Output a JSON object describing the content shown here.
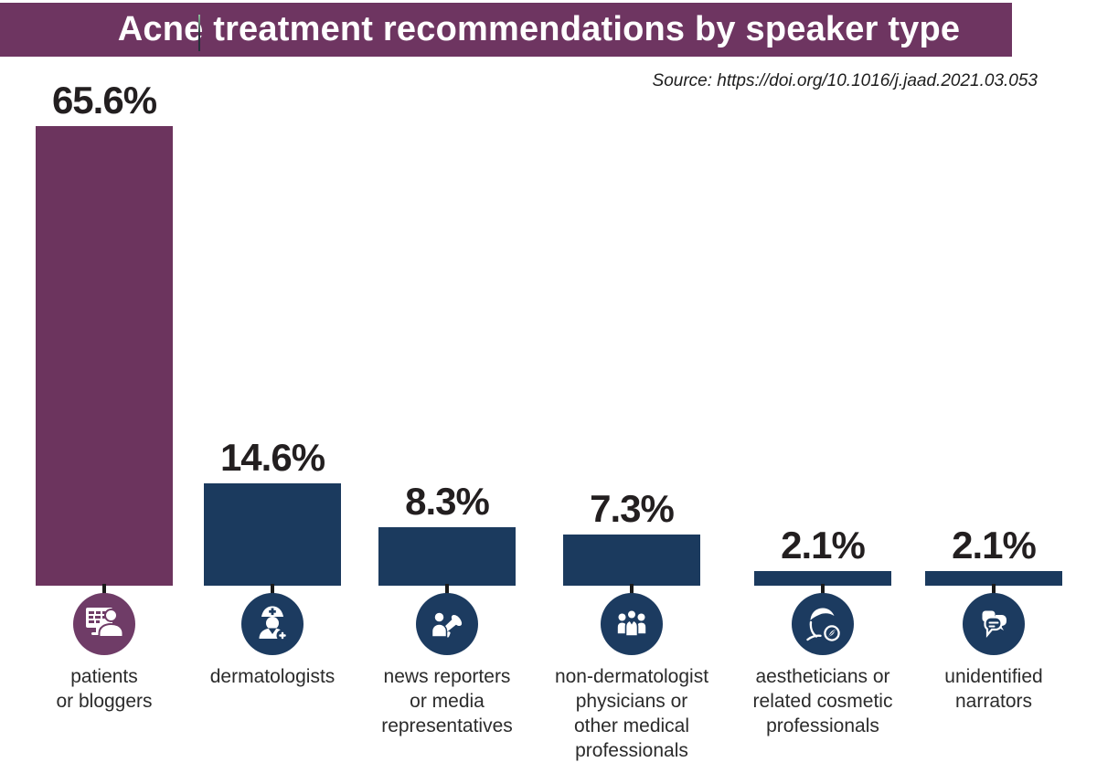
{
  "header": {
    "title": "Acne treatment recommendations by speaker type",
    "source": "Source: https://doi.org/10.1016/j.jaad.2021.03.053"
  },
  "colors": {
    "banner_bg": "#6E3561",
    "title_text": "#FFFFFF",
    "purple_bar": "#6C345E",
    "purple_icon_bg": "#6F3C67",
    "navy_bar": "#1B3A5E",
    "navy_icon_bg": "#1C3B60",
    "value_text": "#231F20",
    "category_text": "#2B2B2B",
    "connector_line": "#1A1A1A",
    "background": "#FFFFFF"
  },
  "chart_data": {
    "type": "bar",
    "title": "Acne treatment recommendations by speaker type",
    "xlabel": "",
    "ylabel": "",
    "unit": "%",
    "ylim": [
      0,
      70
    ],
    "grid": false,
    "legend": "none",
    "categories": [
      "patients or bloggers",
      "dermatologists",
      "news reporters or media representatives",
      "non-dermatologist physicians or other medical professionals",
      "aestheticians or related cosmetic professionals",
      "unidentified narrators"
    ],
    "values": [
      65.6,
      14.6,
      8.3,
      7.3,
      2.1,
      2.1
    ],
    "bars": [
      {
        "label": "65.6%",
        "value": 65.6,
        "category": "patients or bloggers",
        "category_lines": [
          "patients",
          "or bloggers"
        ],
        "color": "#6C345E",
        "icon_bg": "#6F3C67",
        "icon": "patient-blogger-computer-icon"
      },
      {
        "label": "14.6%",
        "value": 14.6,
        "category": "dermatologists",
        "category_lines": [
          "dermatologists"
        ],
        "color": "#1B3A5E",
        "icon_bg": "#1C3B60",
        "icon": "dermatologist-nurse-icon"
      },
      {
        "label": "8.3%",
        "value": 8.3,
        "category": "news reporters or media representatives",
        "category_lines": [
          "news reporters",
          "or media",
          "representatives"
        ],
        "color": "#1B3A5E",
        "icon_bg": "#1C3B60",
        "icon": "reporter-megaphone-icon"
      },
      {
        "label": "7.3%",
        "value": 7.3,
        "category": "non-dermatologist physicians or other medical professionals",
        "category_lines": [
          "non-dermatologist",
          "physicians or",
          "other medical",
          "professionals"
        ],
        "color": "#1B3A5E",
        "icon_bg": "#1C3B60",
        "icon": "medical-professionals-group-icon"
      },
      {
        "label": "2.1%",
        "value": 2.1,
        "category": "aestheticians or related cosmetic professionals",
        "category_lines": [
          "aestheticians or",
          "related cosmetic",
          "professionals"
        ],
        "color": "#1B3A5E",
        "icon_bg": "#1C3B60",
        "icon": "aesthetician-spa-icon"
      },
      {
        "label": "2.1%",
        "value": 2.1,
        "category": "unidentified narrators",
        "category_lines": [
          "unidentified",
          "narrators"
        ],
        "color": "#1B3A5E",
        "icon_bg": "#1C3B60",
        "icon": "speech-bubbles-icon"
      }
    ]
  }
}
